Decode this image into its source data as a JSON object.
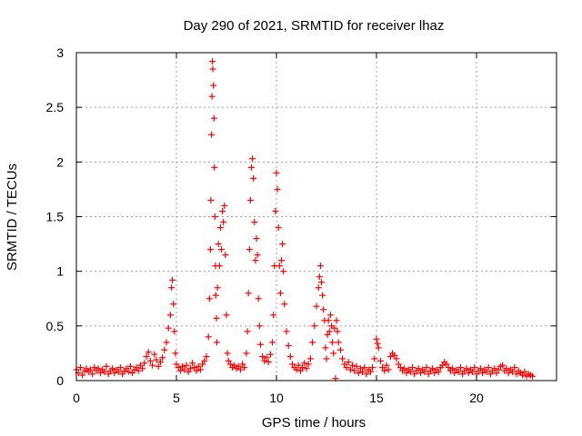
{
  "chart_data": {
    "type": "scatter",
    "title": "Day 290 of 2021, SRMTID for receiver lhaz",
    "xlabel": "GPS time / hours",
    "ylabel": "SRMTID / TECUs",
    "xlim": [
      0,
      24
    ],
    "ylim": [
      0,
      3
    ],
    "x_ticks": [
      0,
      5,
      10,
      15,
      20
    ],
    "y_ticks": [
      0,
      0.5,
      1,
      1.5,
      2,
      2.5,
      3
    ],
    "x_tick_labels": [
      "0",
      "5",
      "10",
      "15",
      "20"
    ],
    "y_tick_labels": [
      "0",
      "0.5",
      "1",
      "1.5",
      "2",
      "2.5",
      "3"
    ],
    "grid": true,
    "marker": "+",
    "color": "#ff0000",
    "series": [
      {
        "name": "SRMTID",
        "points": [
          [
            0.0,
            0.1
          ],
          [
            0.1,
            0.07
          ],
          [
            0.2,
            0.12
          ],
          [
            0.3,
            0.05
          ],
          [
            0.4,
            0.09
          ],
          [
            0.5,
            0.11
          ],
          [
            0.6,
            0.08
          ],
          [
            0.7,
            0.1
          ],
          [
            0.8,
            0.06
          ],
          [
            0.9,
            0.12
          ],
          [
            1.0,
            0.09
          ],
          [
            1.1,
            0.11
          ],
          [
            1.2,
            0.07
          ],
          [
            1.3,
            0.1
          ],
          [
            1.4,
            0.08
          ],
          [
            1.5,
            0.13
          ],
          [
            1.6,
            0.06
          ],
          [
            1.7,
            0.09
          ],
          [
            1.8,
            0.11
          ],
          [
            1.9,
            0.07
          ],
          [
            2.0,
            0.1
          ],
          [
            2.1,
            0.08
          ],
          [
            2.2,
            0.12
          ],
          [
            2.3,
            0.06
          ],
          [
            2.4,
            0.09
          ],
          [
            2.5,
            0.11
          ],
          [
            2.6,
            0.08
          ],
          [
            2.7,
            0.13
          ],
          [
            2.8,
            0.07
          ],
          [
            2.9,
            0.1
          ],
          [
            3.0,
            0.12
          ],
          [
            3.1,
            0.09
          ],
          [
            3.2,
            0.14
          ],
          [
            3.3,
            0.11
          ],
          [
            3.4,
            0.16
          ],
          [
            3.5,
            0.22
          ],
          [
            3.6,
            0.26
          ],
          [
            3.7,
            0.18
          ],
          [
            3.8,
            0.14
          ],
          [
            3.9,
            0.24
          ],
          [
            4.0,
            0.19
          ],
          [
            4.1,
            0.13
          ],
          [
            4.2,
            0.17
          ],
          [
            4.3,
            0.21
          ],
          [
            4.4,
            0.28
          ],
          [
            4.5,
            0.35
          ],
          [
            4.6,
            0.48
          ],
          [
            4.7,
            0.6
          ],
          [
            4.75,
            0.85
          ],
          [
            4.8,
            0.92
          ],
          [
            4.85,
            0.7
          ],
          [
            4.9,
            0.45
          ],
          [
            4.95,
            0.25
          ],
          [
            5.0,
            0.15
          ],
          [
            5.1,
            0.12
          ],
          [
            5.2,
            0.09
          ],
          [
            5.3,
            0.13
          ],
          [
            5.4,
            0.1
          ],
          [
            5.5,
            0.14
          ],
          [
            5.6,
            0.08
          ],
          [
            5.7,
            0.11
          ],
          [
            5.8,
            0.16
          ],
          [
            5.9,
            0.12
          ],
          [
            6.0,
            0.09
          ],
          [
            6.1,
            0.13
          ],
          [
            6.2,
            0.1
          ],
          [
            6.3,
            0.15
          ],
          [
            6.4,
            0.18
          ],
          [
            6.5,
            0.22
          ],
          [
            6.6,
            0.4
          ],
          [
            6.65,
            0.75
          ],
          [
            6.7,
            1.2
          ],
          [
            6.72,
            1.65
          ],
          [
            6.75,
            2.25
          ],
          [
            6.78,
            2.6
          ],
          [
            6.8,
            2.92
          ],
          [
            6.82,
            2.85
          ],
          [
            6.85,
            2.7
          ],
          [
            6.88,
            2.4
          ],
          [
            6.9,
            1.95
          ],
          [
            6.92,
            1.5
          ],
          [
            6.95,
            1.05
          ],
          [
            6.97,
            0.78
          ],
          [
            7.0,
            0.57
          ],
          [
            7.02,
            0.35
          ],
          [
            7.05,
            0.85
          ],
          [
            7.1,
            1.25
          ],
          [
            7.15,
            1.05
          ],
          [
            7.2,
            1.4
          ],
          [
            7.25,
            1.2
          ],
          [
            7.3,
            1.55
          ],
          [
            7.35,
            1.45
          ],
          [
            7.4,
            1.6
          ],
          [
            7.45,
            1.15
          ],
          [
            7.5,
            0.6
          ],
          [
            7.55,
            0.25
          ],
          [
            7.6,
            0.18
          ],
          [
            7.7,
            0.15
          ],
          [
            7.8,
            0.12
          ],
          [
            7.9,
            0.14
          ],
          [
            8.0,
            0.11
          ],
          [
            8.1,
            0.13
          ],
          [
            8.2,
            0.1
          ],
          [
            8.3,
            0.15
          ],
          [
            8.4,
            0.12
          ],
          [
            8.5,
            0.25
          ],
          [
            8.55,
            0.45
          ],
          [
            8.6,
            0.8
          ],
          [
            8.65,
            1.2
          ],
          [
            8.7,
            1.65
          ],
          [
            8.75,
            1.95
          ],
          [
            8.8,
            2.03
          ],
          [
            8.85,
            1.85
          ],
          [
            8.9,
            1.45
          ],
          [
            8.95,
            1.1
          ],
          [
            9.0,
            1.3
          ],
          [
            9.05,
            1.15
          ],
          [
            9.1,
            0.75
          ],
          [
            9.15,
            0.5
          ],
          [
            9.2,
            0.33
          ],
          [
            9.3,
            0.22
          ],
          [
            9.4,
            0.18
          ],
          [
            9.5,
            0.21
          ],
          [
            9.6,
            0.17
          ],
          [
            9.7,
            0.24
          ],
          [
            9.8,
            0.35
          ],
          [
            9.85,
            0.6
          ],
          [
            9.9,
            1.05
          ],
          [
            9.95,
            1.55
          ],
          [
            10.0,
            1.9
          ],
          [
            10.05,
            1.75
          ],
          [
            10.1,
            1.4
          ],
          [
            10.15,
            1.05
          ],
          [
            10.2,
            0.8
          ],
          [
            10.25,
            1.1
          ],
          [
            10.3,
            1.25
          ],
          [
            10.35,
            1.0
          ],
          [
            10.4,
            0.7
          ],
          [
            10.5,
            0.45
          ],
          [
            10.6,
            0.32
          ],
          [
            10.7,
            0.22
          ],
          [
            10.8,
            0.15
          ],
          [
            10.9,
            0.12
          ],
          [
            11.0,
            0.1
          ],
          [
            11.1,
            0.14
          ],
          [
            11.2,
            0.09
          ],
          [
            11.3,
            0.12
          ],
          [
            11.4,
            0.16
          ],
          [
            11.5,
            0.11
          ],
          [
            11.6,
            0.15
          ],
          [
            11.7,
            0.2
          ],
          [
            11.8,
            0.35
          ],
          [
            11.9,
            0.5
          ],
          [
            12.0,
            0.68
          ],
          [
            12.1,
            0.85
          ],
          [
            12.15,
            0.95
          ],
          [
            12.2,
            1.05
          ],
          [
            12.25,
            0.9
          ],
          [
            12.3,
            0.78
          ],
          [
            12.35,
            0.65
          ],
          [
            12.4,
            0.55
          ],
          [
            12.45,
            0.3
          ],
          [
            12.5,
            0.2
          ],
          [
            12.55,
            0.42
          ],
          [
            12.6,
            0.55
          ],
          [
            12.65,
            0.45
          ],
          [
            12.7,
            0.6
          ],
          [
            12.75,
            0.5
          ],
          [
            12.8,
            0.35
          ],
          [
            12.85,
            0.25
          ],
          [
            12.9,
            0.48
          ],
          [
            12.95,
            0.02
          ],
          [
            13.0,
            0.55
          ],
          [
            13.05,
            0.45
          ],
          [
            13.1,
            0.35
          ],
          [
            13.2,
            0.28
          ],
          [
            13.3,
            0.2
          ],
          [
            13.4,
            0.15
          ],
          [
            13.5,
            0.12
          ],
          [
            13.6,
            0.17
          ],
          [
            13.7,
            0.1
          ],
          [
            13.8,
            0.14
          ],
          [
            13.9,
            0.09
          ],
          [
            14.0,
            0.13
          ],
          [
            14.1,
            0.07
          ],
          [
            14.2,
            0.11
          ],
          [
            14.3,
            0.08
          ],
          [
            14.4,
            0.12
          ],
          [
            14.5,
            0.06
          ],
          [
            14.6,
            0.1
          ],
          [
            14.7,
            0.08
          ],
          [
            14.8,
            0.12
          ],
          [
            14.9,
            0.2
          ],
          [
            15.0,
            0.38
          ],
          [
            15.05,
            0.34
          ],
          [
            15.1,
            0.3
          ],
          [
            15.2,
            0.18
          ],
          [
            15.3,
            0.12
          ],
          [
            15.4,
            0.09
          ],
          [
            15.5,
            0.14
          ],
          [
            15.6,
            0.1
          ],
          [
            15.7,
            0.22
          ],
          [
            15.8,
            0.25
          ],
          [
            15.9,
            0.23
          ],
          [
            16.0,
            0.2
          ],
          [
            16.1,
            0.15
          ],
          [
            16.2,
            0.12
          ],
          [
            16.3,
            0.09
          ],
          [
            16.4,
            0.11
          ],
          [
            16.5,
            0.07
          ],
          [
            16.6,
            0.1
          ],
          [
            16.7,
            0.08
          ],
          [
            16.8,
            0.12
          ],
          [
            16.9,
            0.06
          ],
          [
            17.0,
            0.09
          ],
          [
            17.1,
            0.11
          ],
          [
            17.2,
            0.07
          ],
          [
            17.3,
            0.1
          ],
          [
            17.4,
            0.08
          ],
          [
            17.5,
            0.12
          ],
          [
            17.6,
            0.06
          ],
          [
            17.7,
            0.09
          ],
          [
            17.8,
            0.11
          ],
          [
            17.9,
            0.07
          ],
          [
            18.0,
            0.1
          ],
          [
            18.1,
            0.08
          ],
          [
            18.2,
            0.12
          ],
          [
            18.3,
            0.14
          ],
          [
            18.4,
            0.17
          ],
          [
            18.5,
            0.15
          ],
          [
            18.6,
            0.12
          ],
          [
            18.7,
            0.09
          ],
          [
            18.8,
            0.11
          ],
          [
            18.9,
            0.07
          ],
          [
            19.0,
            0.1
          ],
          [
            19.1,
            0.08
          ],
          [
            19.2,
            0.12
          ],
          [
            19.3,
            0.06
          ],
          [
            19.4,
            0.09
          ],
          [
            19.5,
            0.11
          ],
          [
            19.6,
            0.07
          ],
          [
            19.7,
            0.1
          ],
          [
            19.8,
            0.08
          ],
          [
            19.9,
            0.12
          ],
          [
            20.0,
            0.06
          ],
          [
            20.1,
            0.09
          ],
          [
            20.2,
            0.11
          ],
          [
            20.3,
            0.07
          ],
          [
            20.4,
            0.1
          ],
          [
            20.5,
            0.08
          ],
          [
            20.6,
            0.12
          ],
          [
            20.7,
            0.06
          ],
          [
            20.8,
            0.09
          ],
          [
            20.9,
            0.11
          ],
          [
            21.0,
            0.07
          ],
          [
            21.1,
            0.1
          ],
          [
            21.2,
            0.13
          ],
          [
            21.3,
            0.14
          ],
          [
            21.4,
            0.09
          ],
          [
            21.5,
            0.11
          ],
          [
            21.6,
            0.07
          ],
          [
            21.7,
            0.1
          ],
          [
            21.8,
            0.08
          ],
          [
            21.9,
            0.12
          ],
          [
            22.0,
            0.06
          ],
          [
            22.1,
            0.09
          ],
          [
            22.2,
            0.07
          ],
          [
            22.3,
            0.05
          ],
          [
            22.4,
            0.08
          ],
          [
            22.5,
            0.04
          ],
          [
            22.6,
            0.06
          ],
          [
            22.7,
            0.05
          ],
          [
            22.8,
            0.04
          ]
        ]
      }
    ]
  }
}
